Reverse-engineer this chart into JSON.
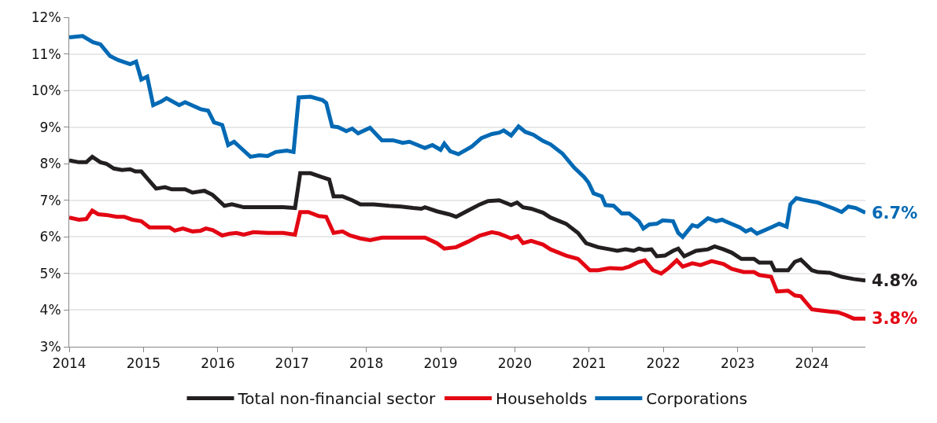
{
  "chart_data": {
    "type": "line",
    "xlim": [
      2014,
      2024.72
    ],
    "xticks": [
      2014,
      2015,
      2016,
      2017,
      2018,
      2019,
      2020,
      2021,
      2022,
      2023,
      2024
    ],
    "ylim": [
      3,
      12
    ],
    "yticks": [
      {
        "value": 3,
        "label": "3%"
      },
      {
        "value": 4,
        "label": "4%"
      },
      {
        "value": 5,
        "label": "5%"
      },
      {
        "value": 6,
        "label": "6%"
      },
      {
        "value": 7,
        "label": "7%"
      },
      {
        "value": 8,
        "label": "8%"
      },
      {
        "value": 9,
        "label": "9%"
      },
      {
        "value": 10,
        "label": "10%"
      },
      {
        "value": 11,
        "label": "11%"
      },
      {
        "value": 12,
        "label": "12%"
      }
    ],
    "grid": "y",
    "legend": "bottom",
    "marker": "none",
    "line_style": "solid",
    "series": [
      {
        "name": "Total non-financial sector",
        "color": "#231f20",
        "x": [
          2014.0,
          2014.13,
          2014.23,
          2014.31,
          2014.42,
          2014.5,
          2014.6,
          2014.71,
          2014.82,
          2014.89,
          2014.97,
          2015.08,
          2015.17,
          2015.29,
          2015.38,
          2015.56,
          2015.66,
          2015.82,
          2015.93,
          2016.09,
          2016.19,
          2016.35,
          2016.56,
          2016.72,
          2016.88,
          2017.04,
          2017.11,
          2017.25,
          2017.39,
          2017.5,
          2017.56,
          2017.68,
          2017.81,
          2017.92,
          2018.1,
          2018.31,
          2018.47,
          2018.63,
          2018.74,
          2018.79,
          2018.95,
          2019.11,
          2019.21,
          2019.37,
          2019.53,
          2019.64,
          2019.79,
          2019.95,
          2020.03,
          2020.11,
          2020.22,
          2020.38,
          2020.48,
          2020.69,
          2020.85,
          2020.96,
          2021.12,
          2021.28,
          2021.38,
          2021.49,
          2021.6,
          2021.67,
          2021.75,
          2021.84,
          2021.91,
          2022.02,
          2022.13,
          2022.2,
          2022.28,
          2022.44,
          2022.6,
          2022.69,
          2022.81,
          2022.92,
          2023.05,
          2023.22,
          2023.29,
          2023.45,
          2023.5,
          2023.68,
          2023.77,
          2023.85,
          2024.0,
          2024.08,
          2024.24,
          2024.4,
          2024.56,
          2024.72
        ],
        "values": [
          8.09,
          8.04,
          8.04,
          8.19,
          8.04,
          8.0,
          7.87,
          7.83,
          7.85,
          7.79,
          7.79,
          7.53,
          7.32,
          7.36,
          7.3,
          7.3,
          7.21,
          7.26,
          7.15,
          6.85,
          6.89,
          6.81,
          6.81,
          6.81,
          6.81,
          6.79,
          7.74,
          7.74,
          7.64,
          7.57,
          7.11,
          7.11,
          7.0,
          6.89,
          6.89,
          6.85,
          6.83,
          6.79,
          6.77,
          6.81,
          6.7,
          6.62,
          6.55,
          6.72,
          6.89,
          6.98,
          7.0,
          6.87,
          6.94,
          6.81,
          6.77,
          6.66,
          6.53,
          6.36,
          6.11,
          5.83,
          5.72,
          5.66,
          5.62,
          5.66,
          5.62,
          5.68,
          5.64,
          5.66,
          5.47,
          5.49,
          5.62,
          5.68,
          5.47,
          5.62,
          5.66,
          5.74,
          5.66,
          5.57,
          5.4,
          5.4,
          5.3,
          5.3,
          5.09,
          5.09,
          5.32,
          5.38,
          5.09,
          5.04,
          5.02,
          4.91,
          4.85,
          4.81
        ]
      },
      {
        "name": "Households",
        "color": "#e30613",
        "x": [
          2014.0,
          2014.13,
          2014.23,
          2014.31,
          2014.39,
          2014.5,
          2014.64,
          2014.74,
          2014.85,
          2014.97,
          2015.08,
          2015.24,
          2015.35,
          2015.42,
          2015.53,
          2015.66,
          2015.77,
          2015.84,
          2015.93,
          2016.06,
          2016.16,
          2016.25,
          2016.35,
          2016.48,
          2016.67,
          2016.88,
          2017.04,
          2017.11,
          2017.22,
          2017.36,
          2017.46,
          2017.56,
          2017.68,
          2017.78,
          2017.92,
          2018.05,
          2018.21,
          2018.47,
          2018.68,
          2018.79,
          2018.95,
          2019.05,
          2019.21,
          2019.37,
          2019.53,
          2019.69,
          2019.79,
          2019.95,
          2020.04,
          2020.11,
          2020.22,
          2020.38,
          2020.48,
          2020.69,
          2020.85,
          2021.01,
          2021.12,
          2021.28,
          2021.44,
          2021.54,
          2021.65,
          2021.75,
          2021.86,
          2021.97,
          2022.07,
          2022.18,
          2022.26,
          2022.39,
          2022.5,
          2022.65,
          2022.81,
          2022.92,
          2023.08,
          2023.22,
          2023.29,
          2023.45,
          2023.53,
          2023.68,
          2023.77,
          2023.85,
          2024.0,
          2024.08,
          2024.24,
          2024.35,
          2024.45,
          2024.56,
          2024.72
        ],
        "values": [
          6.53,
          6.47,
          6.49,
          6.72,
          6.62,
          6.6,
          6.55,
          6.55,
          6.47,
          6.43,
          6.26,
          6.26,
          6.26,
          6.17,
          6.23,
          6.15,
          6.17,
          6.23,
          6.19,
          6.04,
          6.09,
          6.11,
          6.06,
          6.13,
          6.11,
          6.11,
          6.06,
          6.68,
          6.68,
          6.57,
          6.55,
          6.11,
          6.15,
          6.04,
          5.96,
          5.91,
          5.98,
          5.98,
          5.98,
          5.98,
          5.83,
          5.68,
          5.72,
          5.87,
          6.04,
          6.13,
          6.09,
          5.96,
          6.02,
          5.83,
          5.89,
          5.79,
          5.66,
          5.49,
          5.4,
          5.09,
          5.09,
          5.15,
          5.13,
          5.19,
          5.3,
          5.36,
          5.09,
          5.0,
          5.15,
          5.36,
          5.19,
          5.28,
          5.23,
          5.34,
          5.26,
          5.13,
          5.04,
          5.04,
          4.96,
          4.91,
          4.51,
          4.53,
          4.4,
          4.38,
          4.02,
          4.0,
          3.96,
          3.94,
          3.87,
          3.77,
          3.77
        ]
      },
      {
        "name": "Corporations",
        "color": "#0069b4",
        "x": [
          2014.0,
          2014.18,
          2014.32,
          2014.42,
          2014.55,
          2014.66,
          2014.82,
          2014.9,
          2014.97,
          2015.05,
          2015.13,
          2015.24,
          2015.31,
          2015.48,
          2015.56,
          2015.77,
          2015.87,
          2015.95,
          2016.06,
          2016.14,
          2016.22,
          2016.3,
          2016.44,
          2016.56,
          2016.67,
          2016.78,
          2016.93,
          2017.02,
          2017.09,
          2017.25,
          2017.41,
          2017.46,
          2017.54,
          2017.62,
          2017.73,
          2017.81,
          2017.89,
          2018.05,
          2018.21,
          2018.36,
          2018.49,
          2018.58,
          2018.79,
          2018.89,
          2019.0,
          2019.05,
          2019.13,
          2019.24,
          2019.42,
          2019.55,
          2019.69,
          2019.79,
          2019.85,
          2019.95,
          2020.05,
          2020.14,
          2020.25,
          2020.38,
          2020.48,
          2020.64,
          2020.8,
          2020.93,
          2020.99,
          2021.06,
          2021.17,
          2021.22,
          2021.33,
          2021.44,
          2021.54,
          2021.67,
          2021.73,
          2021.81,
          2021.91,
          2021.99,
          2022.13,
          2022.2,
          2022.26,
          2022.39,
          2022.46,
          2022.6,
          2022.71,
          2022.79,
          2022.83,
          2023.03,
          2023.11,
          2023.18,
          2023.26,
          2023.45,
          2023.56,
          2023.66,
          2023.71,
          2023.79,
          2023.87,
          2024.08,
          2024.3,
          2024.4,
          2024.49,
          2024.59,
          2024.72
        ],
        "values": [
          11.45,
          11.49,
          11.32,
          11.26,
          10.94,
          10.83,
          10.72,
          10.79,
          10.3,
          10.38,
          9.6,
          9.7,
          9.79,
          9.6,
          9.68,
          9.49,
          9.45,
          9.13,
          9.06,
          8.51,
          8.6,
          8.45,
          8.19,
          8.23,
          8.21,
          8.32,
          8.36,
          8.32,
          9.81,
          9.83,
          9.74,
          9.66,
          9.02,
          9.0,
          8.89,
          8.96,
          8.83,
          8.98,
          8.64,
          8.64,
          8.57,
          8.6,
          8.43,
          8.51,
          8.38,
          8.55,
          8.34,
          8.26,
          8.47,
          8.7,
          8.81,
          8.85,
          8.91,
          8.77,
          9.02,
          8.87,
          8.79,
          8.62,
          8.53,
          8.28,
          7.89,
          7.64,
          7.49,
          7.19,
          7.11,
          6.87,
          6.85,
          6.64,
          6.64,
          6.43,
          6.23,
          6.34,
          6.36,
          6.45,
          6.43,
          6.11,
          6.0,
          6.32,
          6.28,
          6.51,
          6.43,
          6.47,
          6.43,
          6.26,
          6.15,
          6.21,
          6.09,
          6.26,
          6.36,
          6.28,
          6.89,
          7.06,
          7.02,
          6.94,
          6.77,
          6.68,
          6.83,
          6.79,
          6.66
        ]
      }
    ],
    "annotations": [
      "4.8%",
      "3.8%",
      "6.7%"
    ]
  }
}
